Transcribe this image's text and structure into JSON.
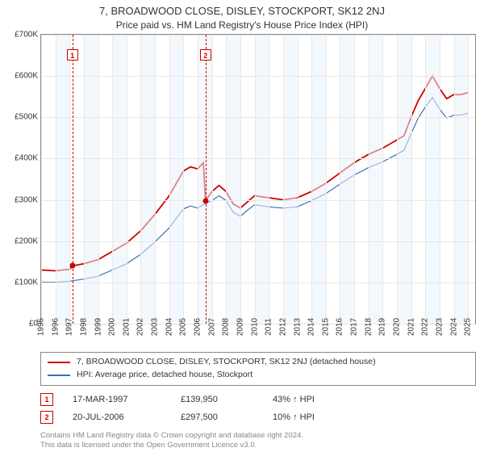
{
  "title": "7, BROADWOOD CLOSE, DISLEY, STOCKPORT, SK12 2NJ",
  "subtitle": "Price paid vs. HM Land Registry's House Price Index (HPI)",
  "chart": {
    "type": "line",
    "background_color": "#ffffff",
    "grid_color": "#e8e8e8",
    "border_color": "#888888",
    "band_color": "#eaf2fb",
    "xlim": [
      1995,
      2025.5
    ],
    "ylim": [
      0,
      700000
    ],
    "ytick_step": 100000,
    "ytick_labels": [
      "£0",
      "£100K",
      "£200K",
      "£300K",
      "£400K",
      "£500K",
      "£600K",
      "£700K"
    ],
    "xticks": [
      1995,
      1996,
      1997,
      1998,
      1999,
      2000,
      2001,
      2002,
      2003,
      2004,
      2005,
      2006,
      2007,
      2008,
      2009,
      2010,
      2011,
      2012,
      2013,
      2014,
      2015,
      2016,
      2017,
      2018,
      2019,
      2020,
      2021,
      2022,
      2023,
      2024,
      2025
    ],
    "series": [
      {
        "name": "7, BROADWOOD CLOSE, DISLEY, STOCKPORT, SK12 2NJ (detached house)",
        "color": "#cc0000",
        "line_width": 1.8,
        "points": [
          [
            1995,
            130000
          ],
          [
            1996,
            128000
          ],
          [
            1997,
            132000
          ],
          [
            1997.2,
            139950
          ],
          [
            1998,
            145000
          ],
          [
            1999,
            155000
          ],
          [
            2000,
            175000
          ],
          [
            2001,
            195000
          ],
          [
            2002,
            225000
          ],
          [
            2003,
            265000
          ],
          [
            2004,
            310000
          ],
          [
            2004.5,
            340000
          ],
          [
            2005,
            370000
          ],
          [
            2005.5,
            380000
          ],
          [
            2006,
            375000
          ],
          [
            2006.4,
            390000
          ],
          [
            2006.55,
            297500
          ],
          [
            2007,
            320000
          ],
          [
            2007.5,
            335000
          ],
          [
            2008,
            320000
          ],
          [
            2008.5,
            290000
          ],
          [
            2009,
            280000
          ],
          [
            2009.5,
            295000
          ],
          [
            2010,
            310000
          ],
          [
            2011,
            305000
          ],
          [
            2012,
            300000
          ],
          [
            2013,
            305000
          ],
          [
            2014,
            320000
          ],
          [
            2015,
            340000
          ],
          [
            2016,
            365000
          ],
          [
            2017,
            390000
          ],
          [
            2018,
            410000
          ],
          [
            2019,
            425000
          ],
          [
            2020,
            445000
          ],
          [
            2020.5,
            455000
          ],
          [
            2021,
            500000
          ],
          [
            2021.5,
            540000
          ],
          [
            2022,
            570000
          ],
          [
            2022.5,
            600000
          ],
          [
            2023,
            570000
          ],
          [
            2023.5,
            545000
          ],
          [
            2024,
            555000
          ],
          [
            2024.5,
            555000
          ],
          [
            2025,
            560000
          ]
        ]
      },
      {
        "name": "HPI: Average price, detached house, Stockport",
        "color": "#3b6fb6",
        "line_width": 1.2,
        "points": [
          [
            1995,
            100000
          ],
          [
            1996,
            100000
          ],
          [
            1997,
            103000
          ],
          [
            1998,
            108000
          ],
          [
            1999,
            115000
          ],
          [
            2000,
            130000
          ],
          [
            2001,
            145000
          ],
          [
            2002,
            168000
          ],
          [
            2003,
            198000
          ],
          [
            2004,
            232000
          ],
          [
            2004.5,
            255000
          ],
          [
            2005,
            278000
          ],
          [
            2005.5,
            285000
          ],
          [
            2006,
            280000
          ],
          [
            2006.5,
            290000
          ],
          [
            2007,
            298000
          ],
          [
            2007.5,
            310000
          ],
          [
            2008,
            298000
          ],
          [
            2008.5,
            270000
          ],
          [
            2009,
            260000
          ],
          [
            2009.5,
            275000
          ],
          [
            2010,
            288000
          ],
          [
            2011,
            283000
          ],
          [
            2012,
            280000
          ],
          [
            2013,
            283000
          ],
          [
            2014,
            298000
          ],
          [
            2015,
            315000
          ],
          [
            2016,
            338000
          ],
          [
            2017,
            360000
          ],
          [
            2018,
            378000
          ],
          [
            2019,
            392000
          ],
          [
            2020,
            410000
          ],
          [
            2020.5,
            420000
          ],
          [
            2021,
            460000
          ],
          [
            2021.5,
            498000
          ],
          [
            2022,
            525000
          ],
          [
            2022.5,
            548000
          ],
          [
            2023,
            520000
          ],
          [
            2023.5,
            498000
          ],
          [
            2024,
            505000
          ],
          [
            2024.5,
            505000
          ],
          [
            2025,
            510000
          ]
        ]
      }
    ],
    "markers": [
      {
        "n": "1",
        "x": 1997.2,
        "y": 139950,
        "color": "#cc0000"
      },
      {
        "n": "2",
        "x": 2006.55,
        "y": 297500,
        "color": "#cc0000"
      }
    ]
  },
  "legend": {
    "items": [
      {
        "color": "#cc0000",
        "label": "7, BROADWOOD CLOSE, DISLEY, STOCKPORT, SK12 2NJ (detached house)"
      },
      {
        "color": "#3b6fb6",
        "label": "HPI: Average price, detached house, Stockport"
      }
    ]
  },
  "transactions": [
    {
      "n": "1",
      "color": "#cc0000",
      "date": "17-MAR-1997",
      "price": "£139,950",
      "pct": "43% ↑ HPI"
    },
    {
      "n": "2",
      "color": "#cc0000",
      "date": "20-JUL-2006",
      "price": "£297,500",
      "pct": "10% ↑ HPI"
    }
  ],
  "footer": {
    "line1": "Contains HM Land Registry data © Crown copyright and database right 2024.",
    "line2": "This data is licensed under the Open Government Licence v3.0."
  }
}
